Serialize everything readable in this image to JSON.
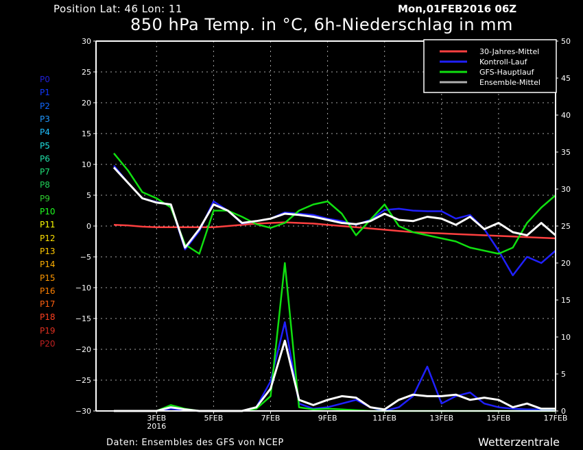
{
  "header": {
    "position": "Position   Lat: 46 Lon: 11",
    "run": "Mon,01FEB2016 06Z",
    "title": "850 hPa Temp. in °C, 6h-Niederschlag in mm"
  },
  "footer": {
    "source": "Daten: Ensembles des GFS von NCEP",
    "brand": "Wetterzentrale"
  },
  "members": [
    {
      "label": "P0",
      "color": "#2020d8"
    },
    {
      "label": "P1",
      "color": "#1038ff"
    },
    {
      "label": "P2",
      "color": "#1068ff"
    },
    {
      "label": "P3",
      "color": "#2098ff"
    },
    {
      "label": "P4",
      "color": "#20c0ff"
    },
    {
      "label": "P5",
      "color": "#20e0e0"
    },
    {
      "label": "P6",
      "color": "#20e0a8"
    },
    {
      "label": "P7",
      "color": "#20e078"
    },
    {
      "label": "P8",
      "color": "#20d058"
    },
    {
      "label": "P9",
      "color": "#30d030"
    },
    {
      "label": "P10",
      "color": "#20ff20"
    },
    {
      "label": "P11",
      "color": "#ffff00"
    },
    {
      "label": "P12",
      "color": "#ffe000"
    },
    {
      "label": "P13",
      "color": "#ffc800"
    },
    {
      "label": "P14",
      "color": "#ffb000"
    },
    {
      "label": "P15",
      "color": "#ff9800"
    },
    {
      "label": "P16",
      "color": "#ff8000"
    },
    {
      "label": "P17",
      "color": "#ff6010"
    },
    {
      "label": "P18",
      "color": "#ff4020"
    },
    {
      "label": "P19",
      "color": "#e03020"
    },
    {
      "label": "P20",
      "color": "#c02020"
    }
  ],
  "chart_data": {
    "type": "line",
    "title": "850 hPa Temp. in °C, 6h-Niederschlag in mm",
    "xlim": [
      "2016-01-31T21",
      "2016-02-17T00"
    ],
    "x_ticks": [
      {
        "date": "2016-02-03T00",
        "label": "3FEB",
        "sublabel": "2016"
      },
      {
        "date": "2016-02-05T00",
        "label": "5FEB"
      },
      {
        "date": "2016-02-07T00",
        "label": "7FEB"
      },
      {
        "date": "2016-02-09T00",
        "label": "9FEB"
      },
      {
        "date": "2016-02-11T00",
        "label": "11FEB"
      },
      {
        "date": "2016-02-13T00",
        "label": "13FEB"
      },
      {
        "date": "2016-02-15T00",
        "label": "15FEB"
      },
      {
        "date": "2016-02-17T00",
        "label": "17FEB"
      }
    ],
    "y_left": {
      "unit": "°C",
      "ylim": [
        -30,
        30
      ],
      "ticks": [
        30,
        25,
        20,
        15,
        10,
        5,
        0,
        -5,
        -10,
        -15,
        -20,
        -25,
        -30
      ]
    },
    "y_right": {
      "unit": "mm",
      "ylim": [
        0,
        50
      ],
      "ticks": [
        50,
        45,
        40,
        35,
        30,
        25,
        20,
        15,
        10,
        5,
        0
      ]
    },
    "grid": true,
    "legend": {
      "placement": "top-right",
      "entries": [
        {
          "name": "30-Jahres-Mittel",
          "color": "#ff4040"
        },
        {
          "name": "Kontroll-Lauf",
          "color": "#2020ff"
        },
        {
          "name": "GFS-Hauptlauf",
          "color": "#10e010"
        },
        {
          "name": "Ensemble-Mittel",
          "color": "#b0b0b0"
        }
      ]
    },
    "x": [
      "2016-02-01T12",
      "2016-02-02T00",
      "2016-02-02T12",
      "2016-02-03T00",
      "2016-02-03T12",
      "2016-02-04T00",
      "2016-02-04T12",
      "2016-02-05T00",
      "2016-02-05T12",
      "2016-02-06T00",
      "2016-02-06T12",
      "2016-02-07T00",
      "2016-02-07T12",
      "2016-02-08T00",
      "2016-02-08T12",
      "2016-02-09T00",
      "2016-02-09T12",
      "2016-02-10T00",
      "2016-02-10T12",
      "2016-02-11T00",
      "2016-02-11T12",
      "2016-02-12T00",
      "2016-02-12T12",
      "2016-02-13T00",
      "2016-02-13T12",
      "2016-02-14T00",
      "2016-02-14T12",
      "2016-02-15T00",
      "2016-02-15T12",
      "2016-02-16T00",
      "2016-02-16T12",
      "2016-02-17T00"
    ],
    "temperature": [
      {
        "name": "30-Jahres-Mittel",
        "color": "#ff4040",
        "width": 2.5,
        "values": [
          0.2,
          0.1,
          -0.1,
          -0.2,
          -0.2,
          -0.2,
          -0.2,
          -0.2,
          0,
          0.2,
          0.4,
          0.5,
          0.6,
          0.5,
          0.4,
          0.2,
          0,
          -0.2,
          -0.4,
          -0.6,
          -0.8,
          -1,
          -1.1,
          -1.2,
          -1.3,
          -1.4,
          -1.5,
          -1.6,
          -1.7,
          -1.8,
          -1.9,
          -2
        ]
      },
      {
        "name": "Kontroll-Lauf",
        "color": "#2020ff",
        "width": 2.5,
        "values": [
          9.8,
          7,
          4.5,
          3.9,
          3.4,
          -3.8,
          -0.8,
          4,
          2.5,
          0.4,
          0.8,
          1.2,
          2.2,
          2,
          1.8,
          1.2,
          0.8,
          0.2,
          1,
          2.6,
          2.8,
          2.5,
          2.4,
          2.4,
          1.2,
          1.8,
          -0.5,
          -4,
          -8,
          -5,
          -6,
          -4
        ]
      },
      {
        "name": "GFS-Hauptlauf",
        "color": "#10e010",
        "width": 2.5,
        "values": [
          11.8,
          9,
          5.5,
          4.5,
          3,
          -3,
          -4.5,
          2.5,
          2.5,
          1.5,
          0.3,
          -0.3,
          0.5,
          2.5,
          3.5,
          4,
          2,
          -1.5,
          1,
          3.5,
          0,
          -1,
          -1.5,
          -2,
          -2.5,
          -3.5,
          -4,
          -4.5,
          -3.5,
          0.5,
          3,
          5
        ]
      },
      {
        "name": "Ensemble-Mittel",
        "color": "#ffffff",
        "width": 3,
        "values": [
          9.5,
          7,
          4.5,
          3.8,
          3.5,
          -3.5,
          -0.5,
          3.5,
          2.5,
          0.5,
          0.8,
          1.2,
          2,
          1.8,
          1.5,
          1,
          0.5,
          0.3,
          0.8,
          2,
          1,
          0.8,
          1.5,
          1.2,
          0.2,
          1.5,
          -0.5,
          0.5,
          -1,
          -1.5,
          0.5,
          -1.5
        ]
      }
    ],
    "precipitation": [
      {
        "name": "Kontroll-Lauf",
        "color": "#2020ff",
        "width": 2.5,
        "values": [
          0,
          0,
          0,
          0,
          0.3,
          0.1,
          0,
          0,
          0,
          0,
          0.5,
          4,
          12,
          1,
          0.3,
          0.5,
          1,
          1.5,
          0.5,
          0,
          0.5,
          2,
          6,
          1,
          2,
          2.5,
          1,
          0.5,
          0.3,
          0.2,
          0.2,
          0
        ]
      },
      {
        "name": "GFS-Hauptlauf",
        "color": "#10e010",
        "width": 2.5,
        "values": [
          0,
          0,
          0,
          0,
          0.8,
          0.3,
          0,
          0,
          0,
          0,
          0.3,
          2,
          20,
          0.5,
          0.2,
          0.3,
          0.2,
          0.1,
          0,
          0,
          0,
          0,
          0,
          0,
          0,
          0,
          0,
          0,
          0,
          0,
          0,
          0
        ]
      },
      {
        "name": "Ensemble-Mittel",
        "color": "#ffffff",
        "width": 3,
        "values": [
          0,
          0,
          0,
          0,
          0.5,
          0.2,
          0,
          0,
          0,
          0,
          0.5,
          3,
          9.5,
          1.5,
          0.8,
          1.5,
          2,
          1.8,
          0.5,
          0.2,
          1.5,
          2.2,
          2,
          2,
          2.2,
          1.5,
          1.8,
          1.5,
          0.5,
          1,
          0.3,
          0.3
        ]
      }
    ]
  }
}
